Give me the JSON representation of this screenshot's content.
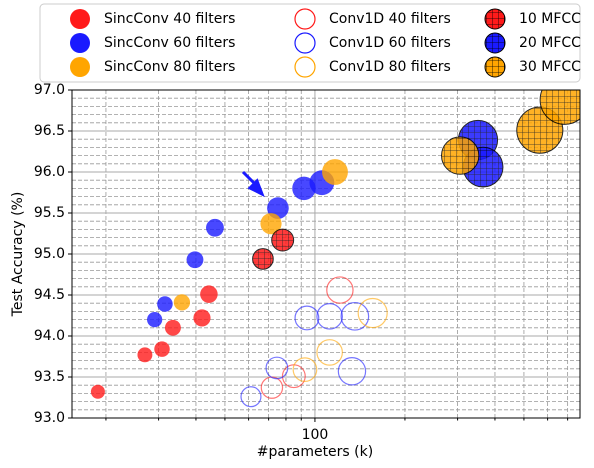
{
  "chart_data": {
    "type": "scatter",
    "xscale": "log",
    "grid": true,
    "xlabel": "#parameters (k)",
    "ylabel": "Test Accuracy (%)",
    "xlim": [
      15.4,
      770
    ],
    "ylim": [
      93.0,
      97.0
    ],
    "xticks": [
      100
    ],
    "xminorticks": [
      20,
      30,
      40,
      50,
      60,
      70,
      80,
      90,
      200,
      300,
      400,
      500,
      600,
      700
    ],
    "yticks": [
      {
        "value": 93.0,
        "label": "93.0"
      },
      {
        "value": 93.5,
        "label": "93.5"
      },
      {
        "value": 94.0,
        "label": "94.0"
      },
      {
        "value": 94.5,
        "label": "94.5"
      },
      {
        "value": 95.0,
        "label": "95.0"
      },
      {
        "value": 95.5,
        "label": "95.5"
      },
      {
        "value": 96.0,
        "label": "96.0"
      },
      {
        "value": 96.5,
        "label": "96.5"
      },
      {
        "value": 97.0,
        "label": "97.0"
      }
    ],
    "yminorticks": [
      93.1,
      93.2,
      93.3,
      93.4,
      93.6,
      93.7,
      93.8,
      93.9,
      94.1,
      94.2,
      94.3,
      94.4,
      94.6,
      94.7,
      94.8,
      94.9,
      95.1,
      95.2,
      95.3,
      95.4,
      95.6,
      95.7,
      95.8,
      95.9,
      96.1,
      96.2,
      96.3,
      96.4,
      96.6,
      96.7,
      96.8,
      96.9
    ],
    "series": [
      {
        "name": "SincConv 40 filters",
        "color": "#ff1a1a",
        "marker": "filled",
        "x": [
          18.8,
          27.0,
          30.8,
          33.5,
          41.9,
          44.2
        ],
        "values": [
          93.32,
          93.77,
          93.84,
          94.1,
          94.22,
          94.51
        ]
      },
      {
        "name": "SincConv 60 filters",
        "color": "#1a1aff",
        "marker": "filled",
        "x": [
          29.1,
          31.5,
          39.7,
          46.3,
          75.2,
          91.9,
          105.5
        ],
        "values": [
          94.2,
          94.39,
          94.93,
          95.32,
          95.56,
          95.8,
          95.87
        ]
      },
      {
        "name": "SincConv 80 filters",
        "color": "#ffa500",
        "marker": "filled",
        "x": [
          35.9,
          71.3,
          116.7
        ],
        "values": [
          94.41,
          95.37,
          96.0
        ]
      },
      {
        "name": "Conv1D 40 filters",
        "color": "#ff1a1a",
        "marker": "hollow",
        "x": [
          71.8,
          85,
          121.2
        ],
        "values": [
          93.37,
          93.51,
          94.56
        ]
      },
      {
        "name": "Conv1D 60 filters",
        "color": "#1a1aff",
        "marker": "hollow",
        "x": [
          61.1,
          74.6,
          94.0,
          112,
          133,
          136
        ],
        "values": [
          93.26,
          93.61,
          94.22,
          94.24,
          93.57,
          94.24
        ]
      },
      {
        "name": "Conv1D 80 filters",
        "color": "#ffa500",
        "marker": "hollow",
        "x": [
          92.6,
          112,
          156
        ],
        "values": [
          93.59,
          93.8,
          94.28
        ]
      },
      {
        "name": "10 MFCC",
        "color": "#ff1a1a",
        "marker": "hatched",
        "x": [
          67,
          78
        ],
        "values": [
          94.94,
          95.17
        ]
      },
      {
        "name": "20 MFCC",
        "color": "#1a1aff",
        "marker": "hatched",
        "x": [
          351,
          365
        ],
        "values": [
          96.39,
          96.06
        ]
      },
      {
        "name": "30 MFCC",
        "color": "#ffa500",
        "marker": "hatched",
        "x": [
          306,
          565,
          684
        ],
        "values": [
          96.2,
          96.51,
          96.88
        ]
      }
    ]
  }
}
